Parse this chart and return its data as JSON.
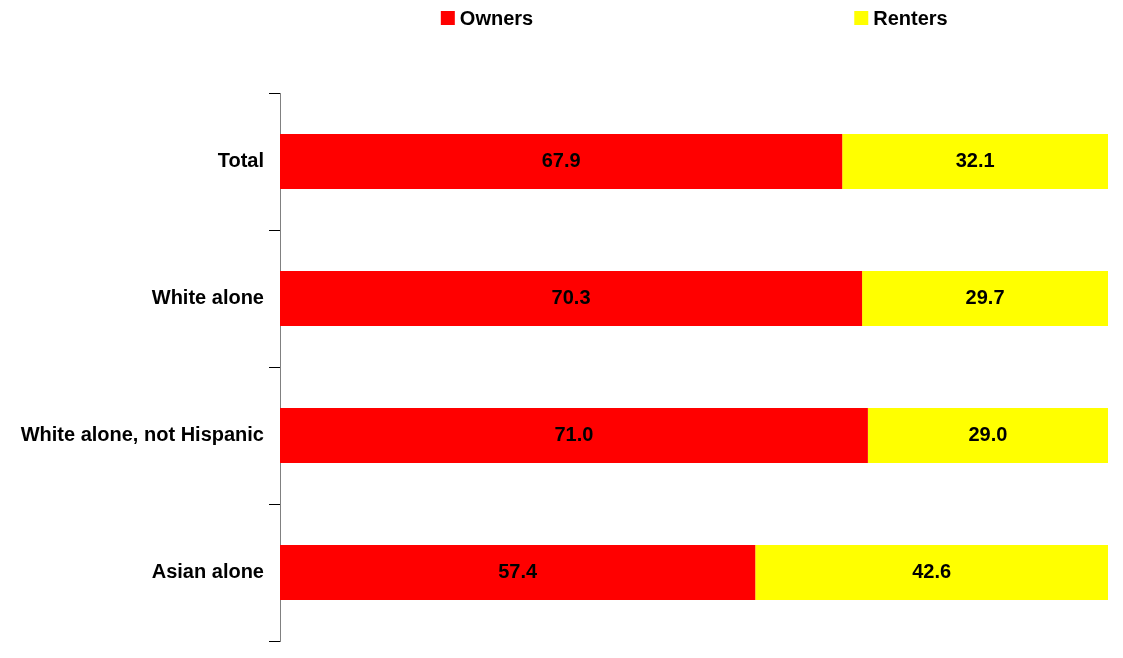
{
  "chart_data": {
    "type": "bar",
    "orientation": "horizontal",
    "stacked": true,
    "categories": [
      "Total",
      "White alone",
      "White alone, not Hispanic",
      "Asian alone"
    ],
    "series": [
      {
        "name": "Owners",
        "color": "#ff0000",
        "values": [
          67.9,
          70.3,
          71.0,
          57.4
        ],
        "value_labels": [
          "67.9",
          "70.3",
          "71.0",
          "57.4"
        ]
      },
      {
        "name": "Renters",
        "color": "#ffff00",
        "values": [
          32.1,
          29.7,
          29.0,
          42.6
        ],
        "value_labels": [
          "32.1",
          "29.7",
          "29.0",
          "42.6"
        ]
      }
    ],
    "xlim": [
      0,
      100
    ],
    "tick_labels": "y",
    "grid": false,
    "legend": "top"
  }
}
